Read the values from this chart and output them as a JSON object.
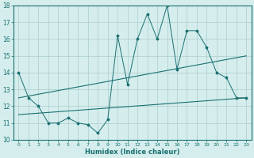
{
  "x_ticks": [
    0,
    1,
    2,
    3,
    4,
    5,
    6,
    7,
    8,
    9,
    10,
    11,
    12,
    13,
    14,
    15,
    16,
    17,
    18,
    19,
    20,
    21,
    22,
    23
  ],
  "ylim": [
    10,
    18
  ],
  "xlim": [
    -0.5,
    23.5
  ],
  "yticks": [
    10,
    11,
    12,
    13,
    14,
    15,
    16,
    17,
    18
  ],
  "xlabel": "Humidex (Indice chaleur)",
  "background_color": "#d5eded",
  "grid_color": "#aacccc",
  "line_color": "#1a7070",
  "series": {
    "line1": {
      "x": [
        0,
        1,
        2,
        3,
        4,
        5,
        6,
        7,
        8,
        9,
        10,
        11,
        12,
        13,
        14,
        15,
        16,
        17,
        18,
        19,
        20,
        21,
        22,
        23
      ],
      "y": [
        14,
        12.5,
        12,
        11,
        11,
        11.3,
        11,
        10.9,
        10.4,
        11.2,
        16.2,
        13.3,
        16,
        17.5,
        16,
        18,
        14.2,
        16.5,
        16.5,
        15.5,
        14,
        13.7,
        12.5,
        12.5
      ]
    },
    "line2": {
      "x": [
        0,
        23
      ],
      "y": [
        12.5,
        15.0
      ]
    },
    "line3": {
      "x": [
        0,
        23
      ],
      "y": [
        11.5,
        12.5
      ]
    }
  }
}
